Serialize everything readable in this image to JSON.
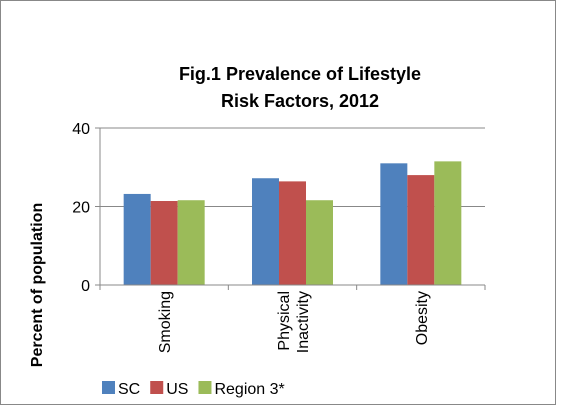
{
  "chart_data": {
    "type": "bar",
    "title": "Fig.1  Prevalence of Lifestyle Risk Factors, 2012",
    "y_label": "Percent of population",
    "categories": [
      "Smoking",
      "Physical Inactivity",
      "Obesity"
    ],
    "series": [
      {
        "name": "SC",
        "color": "#4f81bd",
        "values": [
          23.2,
          27.2,
          31
        ]
      },
      {
        "name": "US",
        "color": "#c0504d",
        "values": [
          21.4,
          26.4,
          28
        ]
      },
      {
        "name": "Region 3*",
        "color": "#9bbb59",
        "values": [
          21.6,
          21.6,
          31.5
        ]
      }
    ],
    "ylim": [
      0,
      40
    ],
    "yticks": [
      0,
      20,
      40
    ],
    "grid": true,
    "legend": "bottom"
  }
}
